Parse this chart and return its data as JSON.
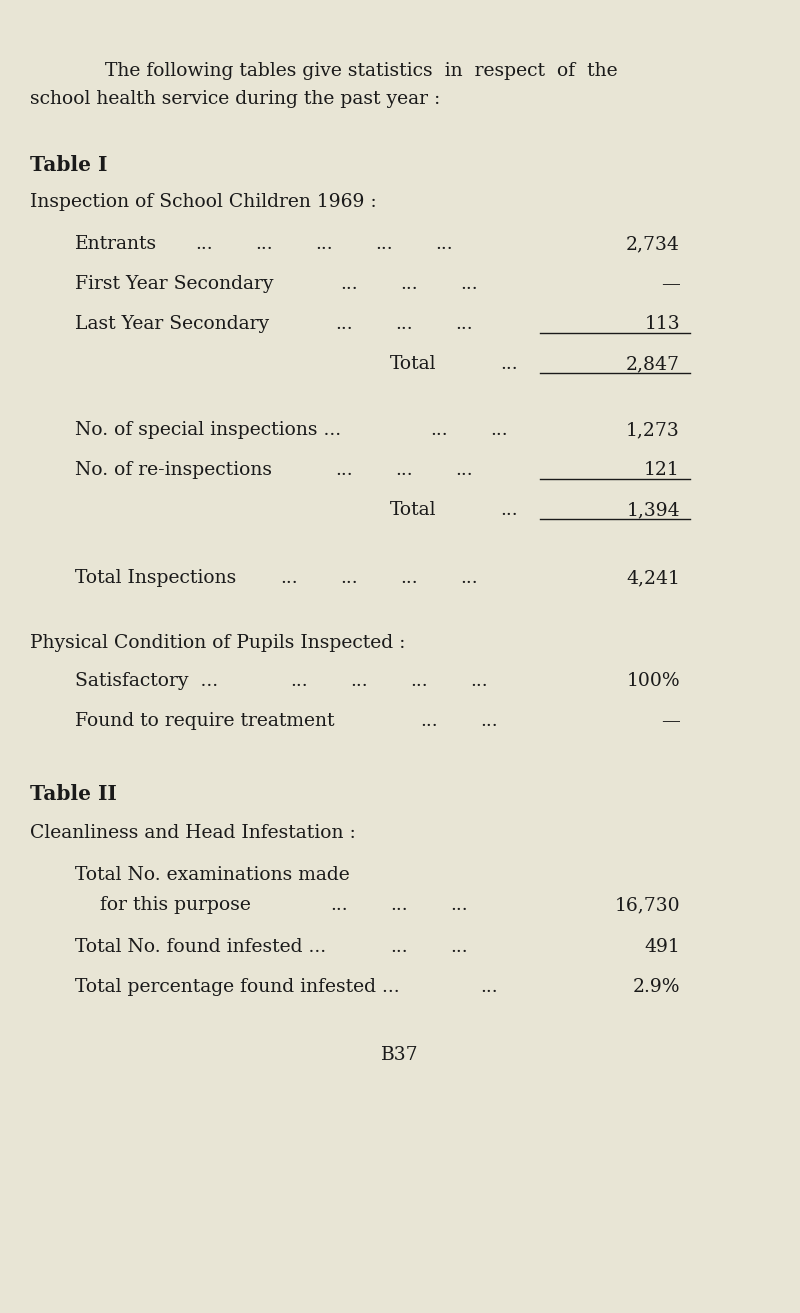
{
  "bg_color": "#e8e5d5",
  "text_color": "#1a1a1a",
  "intro_line1": "The following tables give statistics  in  respect  of  the",
  "intro_line2": "school health service during the past year :",
  "table1_heading": "Table I",
  "table1_subheading": "Inspection of School Children 1969 :",
  "total1_label": "Total",
  "total1_dots": "...",
  "total1_value": "2,847",
  "total2_label": "Total",
  "total2_dots": "...",
  "total2_value": "1,394",
  "total_inspections_label": "Total Inspections",
  "total_inspections_value": "4,241",
  "physical_heading": "Physical Condition of Pupils Inspected :",
  "table2_heading": "Table II",
  "table2_subheading": "Cleanliness and Head Infestation :",
  "footer": "B37",
  "fontsize": 13.5
}
